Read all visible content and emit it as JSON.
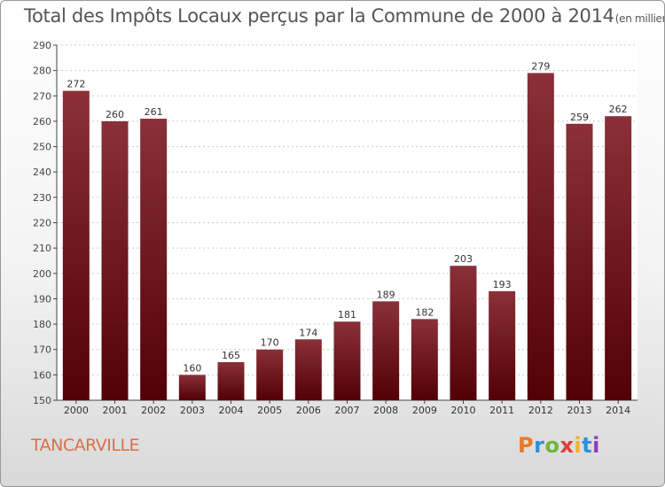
{
  "header": {
    "title": "Total des Impôts Locaux perçus par la Commune de 2000 à 2014",
    "subtitle": "(en milliers d'€)"
  },
  "footer": {
    "commune": "TANCARVILLE",
    "brand": "Proxiti"
  },
  "colors": {
    "bar_top": "#8b3038",
    "bar_bottom": "#520006",
    "grid": "#cccccc",
    "commune": "#d9704a",
    "logo": [
      "#e87a2a",
      "#2e8fd9",
      "#6bb83a",
      "#e23a3a",
      "#f0b428",
      "#2e8fd9",
      "#8e3ac0"
    ]
  },
  "chart_data": {
    "type": "bar",
    "title": "Total des Impôts Locaux perçus par la Commune de 2000 à 2014",
    "xlabel": "",
    "ylabel": "en milliers d'€",
    "categories": [
      "2000",
      "2001",
      "2002",
      "2003",
      "2004",
      "2005",
      "2006",
      "2007",
      "2008",
      "2009",
      "2010",
      "2011",
      "2012",
      "2013",
      "2014"
    ],
    "values": [
      272,
      260,
      261,
      160,
      165,
      170,
      174,
      181,
      189,
      182,
      203,
      193,
      279,
      259,
      262
    ],
    "ylim": [
      150,
      290
    ],
    "yticks": [
      150,
      160,
      170,
      180,
      190,
      200,
      210,
      220,
      230,
      240,
      250,
      260,
      270,
      280,
      290
    ],
    "grid": true
  }
}
